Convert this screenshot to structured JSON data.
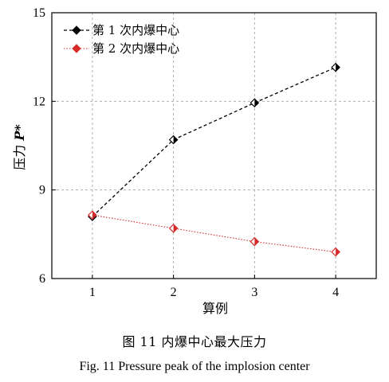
{
  "chart_data": {
    "type": "line",
    "xlabel": "算例",
    "ylabel_cn": "压力 ",
    "ylabel_sym": "P*",
    "categories": [
      "1",
      "2",
      "3",
      "4"
    ],
    "x": [
      1,
      2,
      3,
      4
    ],
    "xlim": [
      0.5,
      4.5
    ],
    "ylim": [
      6,
      15
    ],
    "yticks": [
      6,
      9,
      12,
      15
    ],
    "grid": true,
    "legend_position": "top-left",
    "series": [
      {
        "name": "第 1 次内爆中心",
        "values": [
          8.1,
          10.7,
          11.95,
          13.15
        ],
        "color": "#000000",
        "line_style": "dashed",
        "marker": "diamond"
      },
      {
        "name": "第 2 次内爆中心",
        "values": [
          8.15,
          7.7,
          7.25,
          6.9
        ],
        "color": "#d62b2b",
        "line_style": "dotted",
        "marker": "diamond"
      }
    ]
  },
  "caption": {
    "cn": "图 11    内爆中心最大压力",
    "en": "Fig. 11    Pressure peak of the implosion center"
  }
}
